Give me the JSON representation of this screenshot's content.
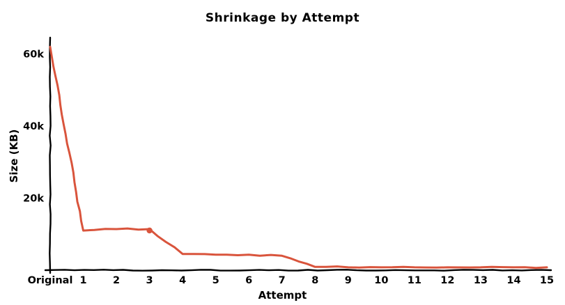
{
  "chart_data": {
    "type": "line",
    "title": "Shrinkage by Attempt",
    "xlabel": "Attempt",
    "ylabel": "Size (KB)",
    "categories": [
      "Original",
      "1",
      "2",
      "3",
      "4",
      "5",
      "6",
      "7",
      "8",
      "9",
      "10",
      "11",
      "12",
      "13",
      "14",
      "15"
    ],
    "values": [
      62000,
      11000,
      11400,
      11400,
      4500,
      4300,
      4300,
      4000,
      900,
      800,
      800,
      800,
      800,
      800,
      800,
      800
    ],
    "ylim": [
      0,
      63000
    ],
    "yticks": [
      {
        "value": 20000,
        "label": "20k"
      },
      {
        "value": 40000,
        "label": "40k"
      },
      {
        "value": 60000,
        "label": "60k"
      }
    ],
    "line_color": "#d9543c",
    "axis_color": "#000000",
    "marker_index": 3,
    "grid": false,
    "legend": "none",
    "style": "hand-drawn"
  }
}
